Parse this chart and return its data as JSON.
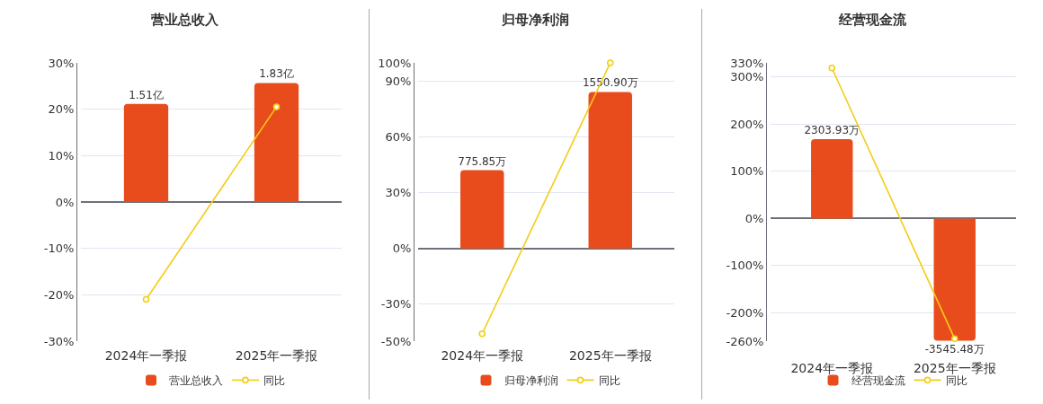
{
  "chart_data": [
    {
      "type": "bar",
      "title": "营业总收入",
      "categories": [
        "2024年一季报",
        "2025年一季报"
      ],
      "series": [
        {
          "name": "营业总收入",
          "axis": "y2",
          "color": "#e84c1d",
          "values": [
            1.51,
            1.83
          ],
          "value_labels": [
            "1.51亿",
            "1.83亿"
          ]
        },
        {
          "name": "同比",
          "type": "line",
          "color": "#f4cc16",
          "values": [
            -21.0,
            20.5
          ]
        }
      ],
      "ylim": [
        -30,
        30
      ],
      "yticks": [
        {
          "value": -30,
          "label": "-30%"
        },
        {
          "value": -20,
          "label": "-20%"
        },
        {
          "value": -10,
          "label": "-10%"
        },
        {
          "value": 0,
          "label": "0%"
        },
        {
          "value": 10,
          "label": "10%"
        },
        {
          "value": 20,
          "label": "20%"
        },
        {
          "value": 30,
          "label": "30%"
        }
      ],
      "y2lim": [
        -2.14,
        2.14
      ],
      "grid": "y",
      "legend": "bottom",
      "marker": "circle"
    },
    {
      "type": "bar",
      "title": "归母净利润",
      "categories": [
        "2024年一季报",
        "2025年一季报"
      ],
      "series": [
        {
          "name": "归母净利润",
          "axis": "y2",
          "color": "#e84c1d",
          "values": [
            775.85,
            1550.9
          ],
          "value_labels": [
            "775.85万",
            "1550.90万"
          ]
        },
        {
          "name": "同比",
          "type": "line",
          "color": "#f4cc16",
          "values": [
            -46,
            100
          ]
        }
      ],
      "ylim": [
        -50,
        100
      ],
      "yticks": [
        {
          "value": -50,
          "label": "-50%"
        },
        {
          "value": -30,
          "label": "-30%"
        },
        {
          "value": 0,
          "label": "0%"
        },
        {
          "value": 30,
          "label": "30%"
        },
        {
          "value": 60,
          "label": "60%"
        },
        {
          "value": 90,
          "label": "90%"
        },
        {
          "value": 100,
          "label": "100%"
        }
      ],
      "y2lim": [
        -920,
        1840
      ],
      "grid": "y",
      "legend": "bottom",
      "marker": "circle"
    },
    {
      "type": "bar",
      "title": "经营现金流",
      "categories": [
        "2024年一季报",
        "2025年一季报"
      ],
      "series": [
        {
          "name": "经营现金流",
          "axis": "y2",
          "color": "#e84c1d",
          "values": [
            2303.93,
            -3545.48
          ],
          "value_labels": [
            "2303.93万",
            "-3545.48万"
          ]
        },
        {
          "name": "同比",
          "type": "line",
          "color": "#f4cc16",
          "values": [
            319,
            -255
          ]
        }
      ],
      "ylim": [
        -260,
        330
      ],
      "yticks": [
        {
          "value": -260,
          "label": "-260%"
        },
        {
          "value": -200,
          "label": "-200%"
        },
        {
          "value": -100,
          "label": "-100%"
        },
        {
          "value": 0,
          "label": "0%"
        },
        {
          "value": 100,
          "label": "100%"
        },
        {
          "value": 200,
          "label": "200%"
        },
        {
          "value": 300,
          "label": "300%"
        },
        {
          "value": 330,
          "label": "330%"
        }
      ],
      "y2lim": [
        -3560,
        4518
      ],
      "grid": "y",
      "legend": "bottom",
      "marker": "circle"
    }
  ]
}
